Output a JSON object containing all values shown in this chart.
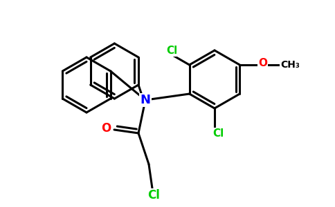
{
  "bg_color": "#ffffff",
  "atom_colors": {
    "C": "#000000",
    "N": "#0000ff",
    "O": "#ff0000",
    "Cl": "#00cc00"
  },
  "bond_color": "#000000",
  "bond_width": 2.2,
  "dbo": 0.055,
  "font_size_label": 11,
  "font_size_N": 13
}
